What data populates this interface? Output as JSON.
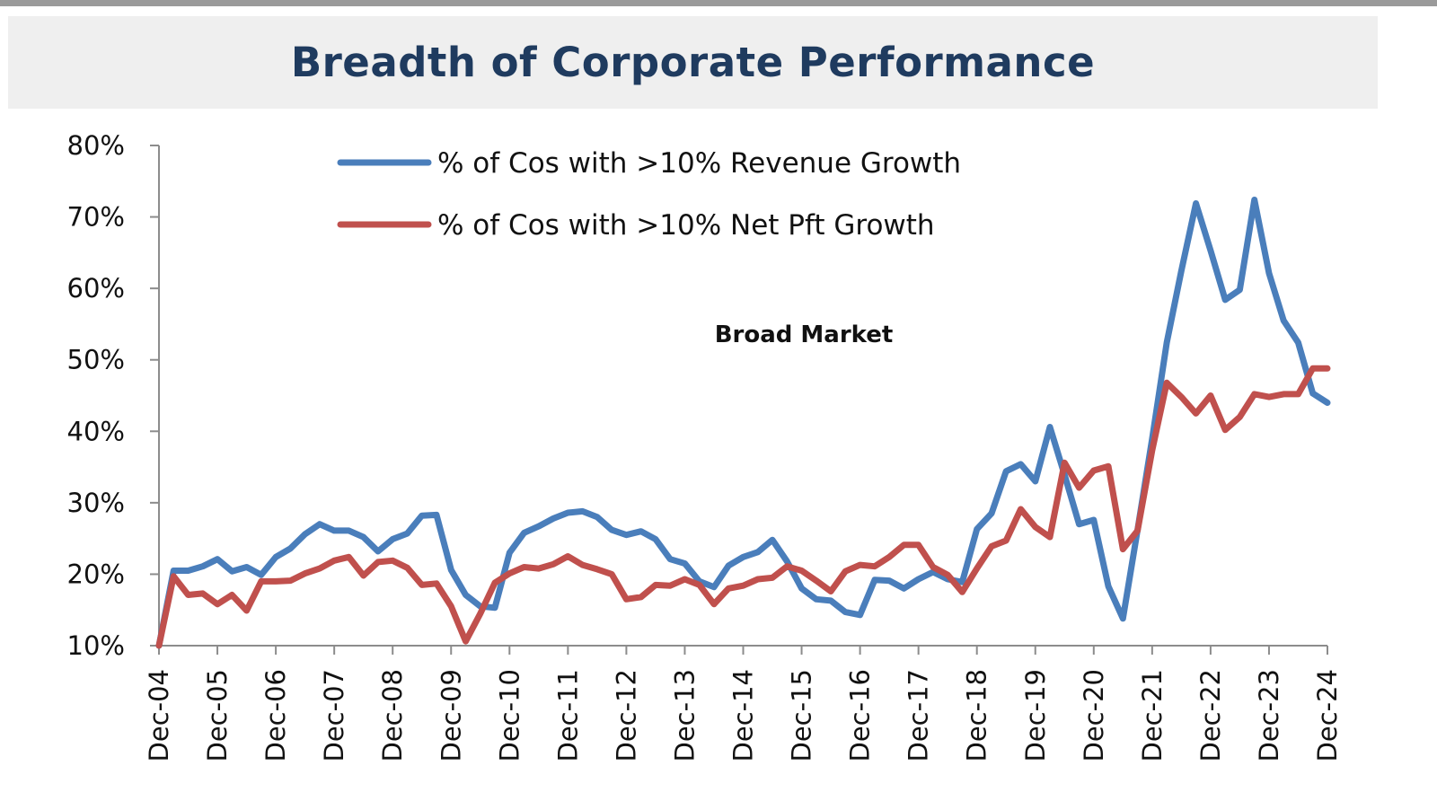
{
  "chart_data": {
    "type": "line",
    "title": "Breadth of Corporate Performance",
    "annotation": "Broad Market",
    "xlabel": "",
    "ylabel": "",
    "ylim": [
      10,
      80
    ],
    "y_ticks": [
      "10%",
      "20%",
      "30%",
      "40%",
      "50%",
      "60%",
      "70%",
      "80%"
    ],
    "y_tick_values": [
      10,
      20,
      30,
      40,
      50,
      60,
      70,
      80
    ],
    "x_ticks": [
      "Dec-04",
      "Dec-05",
      "Dec-06",
      "Dec-07",
      "Dec-08",
      "Dec-09",
      "Dec-10",
      "Dec-11",
      "Dec-12",
      "Dec-13",
      "Dec-14",
      "Dec-15",
      "Dec-16",
      "Dec-17",
      "Dec-18",
      "Dec-19",
      "Dec-20",
      "Dec-21",
      "Dec-22",
      "Dec-23",
      "Dec-24"
    ],
    "x_range": [
      0,
      80
    ],
    "grid": false,
    "legend_position": "top-center",
    "series": [
      {
        "name": "% of Cos with >10% Revenue Growth",
        "color": "#4a7ebb",
        "values": [
          10,
          20.5,
          20.5,
          21.1,
          22.1,
          20.4,
          21.0,
          19.9,
          22.4,
          23.6,
          25.6,
          27.0,
          26.1,
          26.1,
          25.2,
          23.2,
          24.9,
          25.7,
          28.2,
          28.3,
          20.6,
          17.1,
          15.5,
          15.3,
          23.0,
          25.8,
          26.7,
          27.8,
          28.6,
          28.8,
          28.0,
          26.2,
          25.5,
          26.0,
          24.9,
          22.1,
          21.5,
          19.0,
          18.2,
          21.2,
          22.4,
          23.1,
          24.8,
          21.8,
          18.0,
          16.5,
          16.3,
          14.7,
          14.3,
          19.2,
          19.1,
          18.0,
          19.3,
          20.3,
          19.3,
          18.9,
          26.3,
          28.5,
          34.4,
          35.4,
          33.0,
          40.6,
          33.9,
          27.0,
          27.6,
          18.3,
          13.8,
          26.2,
          38.9,
          52.4,
          62.5,
          71.9,
          65.3,
          58.4,
          59.8,
          72.4,
          62.1,
          55.5,
          52.4,
          45.3,
          44.0
        ]
      },
      {
        "name": "% of Cos with >10% Net Pft Growth",
        "color": "#c0504d",
        "values": [
          10,
          19.7,
          17.1,
          17.3,
          15.8,
          17.1,
          14.9,
          19.0,
          19.0,
          19.1,
          20.1,
          20.8,
          21.9,
          22.4,
          19.8,
          21.7,
          21.9,
          20.9,
          18.5,
          18.7,
          15.5,
          10.6,
          14.5,
          18.8,
          20.1,
          21.0,
          20.8,
          21.4,
          22.5,
          21.3,
          20.7,
          20.0,
          16.5,
          16.8,
          18.5,
          18.4,
          19.3,
          18.5,
          15.8,
          18.0,
          18.4,
          19.3,
          19.5,
          21.1,
          20.5,
          19.1,
          17.6,
          20.4,
          21.3,
          21.1,
          22.4,
          24.1,
          24.1,
          21.0,
          19.9,
          17.5,
          20.8,
          23.9,
          24.7,
          29.1,
          26.6,
          25.2,
          35.6,
          32.1,
          34.5,
          35.1,
          23.5,
          26.1,
          37.3,
          46.8,
          44.8,
          42.5,
          45.0,
          40.2,
          42.0,
          45.2,
          44.8,
          45.2,
          45.2,
          48.8,
          48.8
        ]
      }
    ]
  }
}
